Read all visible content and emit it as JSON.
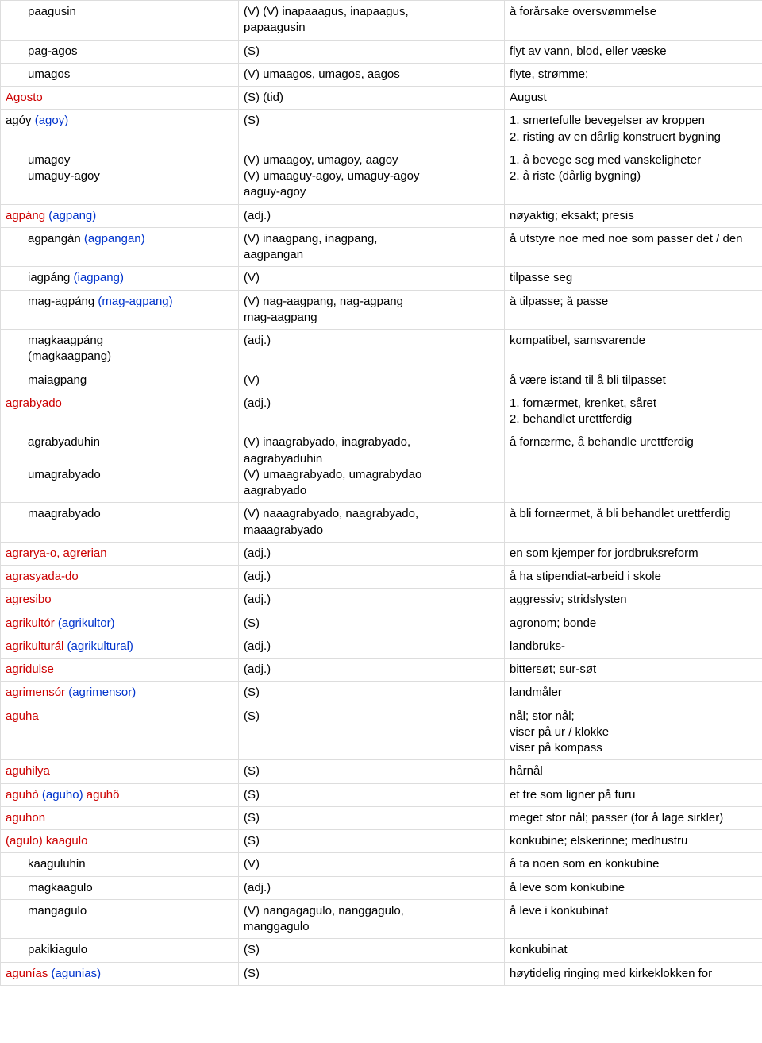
{
  "rows": [
    {
      "col1": [
        {
          "text": "paagusin",
          "cls": "",
          "indent": "indent"
        }
      ],
      "col2": "(V) (V) inapaaagus, inapaagus,\n        papaagusin",
      "col3": "å forårsake oversvømmelse"
    },
    {
      "col1": [
        {
          "text": "pag-agos",
          "cls": "",
          "indent": "indent"
        }
      ],
      "col2": "(S)",
      "col3": "flyt av vann, blod, eller væske"
    },
    {
      "col1": [
        {
          "text": "umagos",
          "cls": "",
          "indent": "indent"
        }
      ],
      "col2": "(V) umaagos, umagos, aagos",
      "col3": "flyte, strømme;"
    },
    {
      "col1": [
        {
          "text": "Agosto",
          "cls": "red",
          "indent": ""
        }
      ],
      "col2": "(S) (tid)",
      "col3": "August"
    },
    {
      "col1": [
        {
          "text": "agóy",
          "cls": "",
          "indent": ""
        },
        {
          "text": " (agoy)",
          "cls": "blue",
          "indent": ""
        }
      ],
      "col2": "(S)",
      "col3": "1. smertefulle bevegelser av kroppen\n2. risting av en dårlig konstruert bygning"
    },
    {
      "col1": [
        {
          "text": "umagoy\numaguy-agoy",
          "cls": "",
          "indent": "indent"
        }
      ],
      "col2": "(V) umaagoy, umagoy, aagoy\n(V) umaaguy-agoy, umaguy-agoy\n       aaguy-agoy",
      "col3": "1. å bevege seg med vanskeligheter\n2. å riste (dårlig bygning)"
    },
    {
      "col1": [
        {
          "text": "agpáng",
          "cls": "red",
          "indent": ""
        },
        {
          "text": " (agpang)",
          "cls": "blue",
          "indent": ""
        }
      ],
      "col2": "(adj.)",
      "col3": "nøyaktig; eksakt; presis"
    },
    {
      "col1": [
        {
          "text": "agpangán",
          "cls": "",
          "indent": "indent"
        },
        {
          "text": " (agpangan)",
          "cls": "blue",
          "indent": ""
        }
      ],
      "col2": "(V) inaagpang, inagpang,\naagpangan",
      "col3": "å utstyre noe med noe som passer det / den"
    },
    {
      "col1": [
        {
          "text": "iagpáng",
          "cls": "",
          "indent": "indent"
        },
        {
          "text": " (iagpang)",
          "cls": "blue",
          "indent": ""
        }
      ],
      "col2": "(V)",
      "col3": "tilpasse seg"
    },
    {
      "col1": [
        {
          "text": "mag-agpáng",
          "cls": "",
          "indent": "indent"
        },
        {
          "text": " (mag-agpang)",
          "cls": "blue",
          "indent": ""
        }
      ],
      "col2": "(V) nag-aagpang, nag-agpang\n       mag-aagpang",
      "col3": "å tilpasse; å passe"
    },
    {
      "col1": [
        {
          "text": "magkaagpáng\n(magkaagpang)",
          "cls": "",
          "indent": "indent"
        }
      ],
      "col2": "(adj.)",
      "col3": "kompatibel, samsvarende"
    },
    {
      "col1": [
        {
          "text": "maiagpang",
          "cls": "",
          "indent": "indent"
        }
      ],
      "col2": "(V)",
      "col3": "å være istand til å bli tilpasset"
    },
    {
      "col1": [
        {
          "text": "agrabyado",
          "cls": "red",
          "indent": ""
        }
      ],
      "col2": "(adj.)",
      "col3": "1. fornærmet, krenket, såret\n2. behandlet urettferdig"
    },
    {
      "col1": [
        {
          "text": "agrabyaduhin\n\numagrabyado",
          "cls": "",
          "indent": "indent"
        }
      ],
      "col2": "(V) inaagrabyado, inagrabyado,\n       aagrabyaduhin\n(V) umaagrabyado, umagrabydao\n       aagrabyado\n",
      "col3": "å fornærme, å behandle urettferdig"
    },
    {
      "col1": [
        {
          "text": "maagrabyado",
          "cls": "",
          "indent": "indent"
        }
      ],
      "col2": "(V) naaagrabyado, naagrabyado,\n       maaagrabyado",
      "col3": "å bli fornærmet, å bli behandlet urettferdig"
    },
    {
      "col1": [
        {
          "text": "agrarya-o",
          "cls": "red",
          "indent": ""
        },
        {
          "text": ", ",
          "cls": "red",
          "indent": ""
        },
        {
          "text": "agrerian",
          "cls": "red",
          "indent": ""
        }
      ],
      "col2": "(adj.)",
      "col3": "en som kjemper for jordbruksreform"
    },
    {
      "col1": [
        {
          "text": "agrasyada-do",
          "cls": "red",
          "indent": ""
        }
      ],
      "col2": "(adj.)",
      "col3": "å ha stipendiat-arbeid i skole"
    },
    {
      "col1": [
        {
          "text": "agresibo",
          "cls": "red",
          "indent": ""
        }
      ],
      "col2": "(adj.)",
      "col3": "aggressiv; stridslysten"
    },
    {
      "col1": [
        {
          "text": "agrikultór",
          "cls": "red",
          "indent": ""
        },
        {
          "text": " (agrikultor)",
          "cls": "blue",
          "indent": ""
        }
      ],
      "col2": "(S)",
      "col3": "agronom; bonde"
    },
    {
      "col1": [
        {
          "text": "agrikulturál",
          "cls": "red",
          "indent": ""
        },
        {
          "text": " (agrikultural)",
          "cls": "blue",
          "indent": ""
        }
      ],
      "col2": "(adj.)",
      "col3": "landbruks-"
    },
    {
      "col1": [
        {
          "text": "agridulse",
          "cls": "red",
          "indent": ""
        }
      ],
      "col2": "(adj.)",
      "col3": "bittersøt; sur-søt"
    },
    {
      "col1": [
        {
          "text": "agrimensór",
          "cls": "red",
          "indent": ""
        },
        {
          "text": " (agrimensor)",
          "cls": "blue",
          "indent": ""
        }
      ],
      "col2": "(S)",
      "col3": "landmåler"
    },
    {
      "col1": [
        {
          "text": "aguha",
          "cls": "red",
          "indent": ""
        }
      ],
      "col2": "(S)",
      "col3": "nål; stor nål;\nviser på ur / klokke\nviser på kompass"
    },
    {
      "col1": [
        {
          "text": "aguhilya",
          "cls": "red",
          "indent": ""
        }
      ],
      "col2": "(S)",
      "col3": "hårnål"
    },
    {
      "col1": [
        {
          "text": "aguhò",
          "cls": "red",
          "indent": ""
        },
        {
          "text": " (aguho)",
          "cls": "blue",
          "indent": ""
        },
        {
          "text": " aguhô",
          "cls": "red",
          "indent": ""
        }
      ],
      "col2": "(S)",
      "col3": "et tre som ligner på furu"
    },
    {
      "col1": [
        {
          "text": "aguhon",
          "cls": "red",
          "indent": ""
        }
      ],
      "col2": "(S)",
      "col3": "meget stor nål; passer (for å lage sirkler)"
    },
    {
      "col1": [
        {
          "text": "(agulo)",
          "cls": "red",
          "indent": ""
        },
        {
          "text": " kaagulo",
          "cls": "red",
          "indent": ""
        }
      ],
      "col2": "(S)",
      "col3": "konkubine; elskerinne; medhustru"
    },
    {
      "col1": [
        {
          "text": "kaaguluhin",
          "cls": "",
          "indent": "indent"
        }
      ],
      "col2": "(V)",
      "col3": "å ta noen som en konkubine"
    },
    {
      "col1": [
        {
          "text": "magkaagulo",
          "cls": "",
          "indent": "indent"
        }
      ],
      "col2": "(adj.)",
      "col3": "å leve som konkubine"
    },
    {
      "col1": [
        {
          "text": "mangagulo",
          "cls": "",
          "indent": "indent"
        }
      ],
      "col2": "(V) nangagagulo, nanggagulo,\n       manggagulo",
      "col3": "å leve i konkubinat"
    },
    {
      "col1": [
        {
          "text": "pakikiagulo",
          "cls": "",
          "indent": "indent"
        }
      ],
      "col2": "(S)",
      "col3": "konkubinat"
    },
    {
      "col1": [
        {
          "text": "agunías",
          "cls": "red",
          "indent": ""
        },
        {
          "text": " (agunias)",
          "cls": "blue",
          "indent": ""
        }
      ],
      "col2": "(S)",
      "col3": "høytidelig ringing med kirkeklokken for"
    }
  ]
}
